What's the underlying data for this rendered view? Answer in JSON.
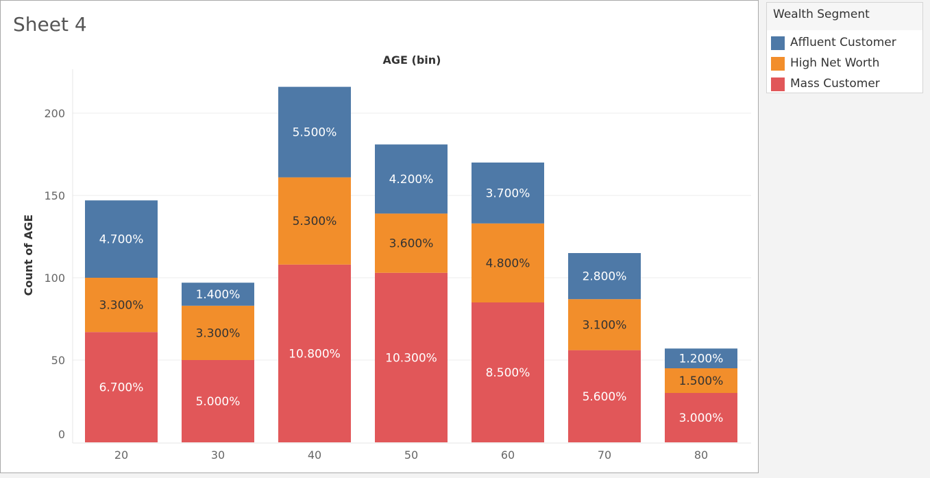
{
  "sheet": {
    "title": "Sheet 4"
  },
  "legend": {
    "title": "Wealth Segment",
    "items": [
      {
        "label": "Affluent Customer",
        "color": "#4e79a7"
      },
      {
        "label": "High Net Worth",
        "color": "#f28e2b"
      },
      {
        "label": "Mass Customer",
        "color": "#e15759"
      }
    ]
  },
  "chart_data": {
    "type": "bar",
    "stacked": true,
    "title": "AGE (bin)",
    "xlabel": "",
    "ylabel": "Count of AGE",
    "categories": [
      "20",
      "30",
      "40",
      "50",
      "60",
      "70",
      "80"
    ],
    "ylim": [
      0,
      220
    ],
    "yticks": [
      0,
      50,
      100,
      150,
      200
    ],
    "grid": true,
    "legend_position": "top-right",
    "series": [
      {
        "name": "Mass Customer",
        "color": "#e15759",
        "label_color": "#ffffff",
        "values": [
          67,
          50,
          108,
          103,
          85,
          56,
          30
        ],
        "labels": [
          "6.700%",
          "5.000%",
          "10.800%",
          "10.300%",
          "8.500%",
          "5.600%",
          "3.000%"
        ]
      },
      {
        "name": "High Net Worth",
        "color": "#f28e2b",
        "label_color": "#333333",
        "values": [
          33,
          33,
          53,
          36,
          48,
          31,
          15
        ],
        "labels": [
          "3.300%",
          "3.300%",
          "5.300%",
          "3.600%",
          "4.800%",
          "3.100%",
          "1.500%"
        ]
      },
      {
        "name": "Affluent Customer",
        "color": "#4e79a7",
        "label_color": "#ffffff",
        "values": [
          47,
          14,
          55,
          42,
          37,
          28,
          12
        ],
        "labels": [
          "4.700%",
          "1.400%",
          "5.500%",
          "4.200%",
          "3.700%",
          "2.800%",
          "1.200%"
        ]
      }
    ]
  }
}
